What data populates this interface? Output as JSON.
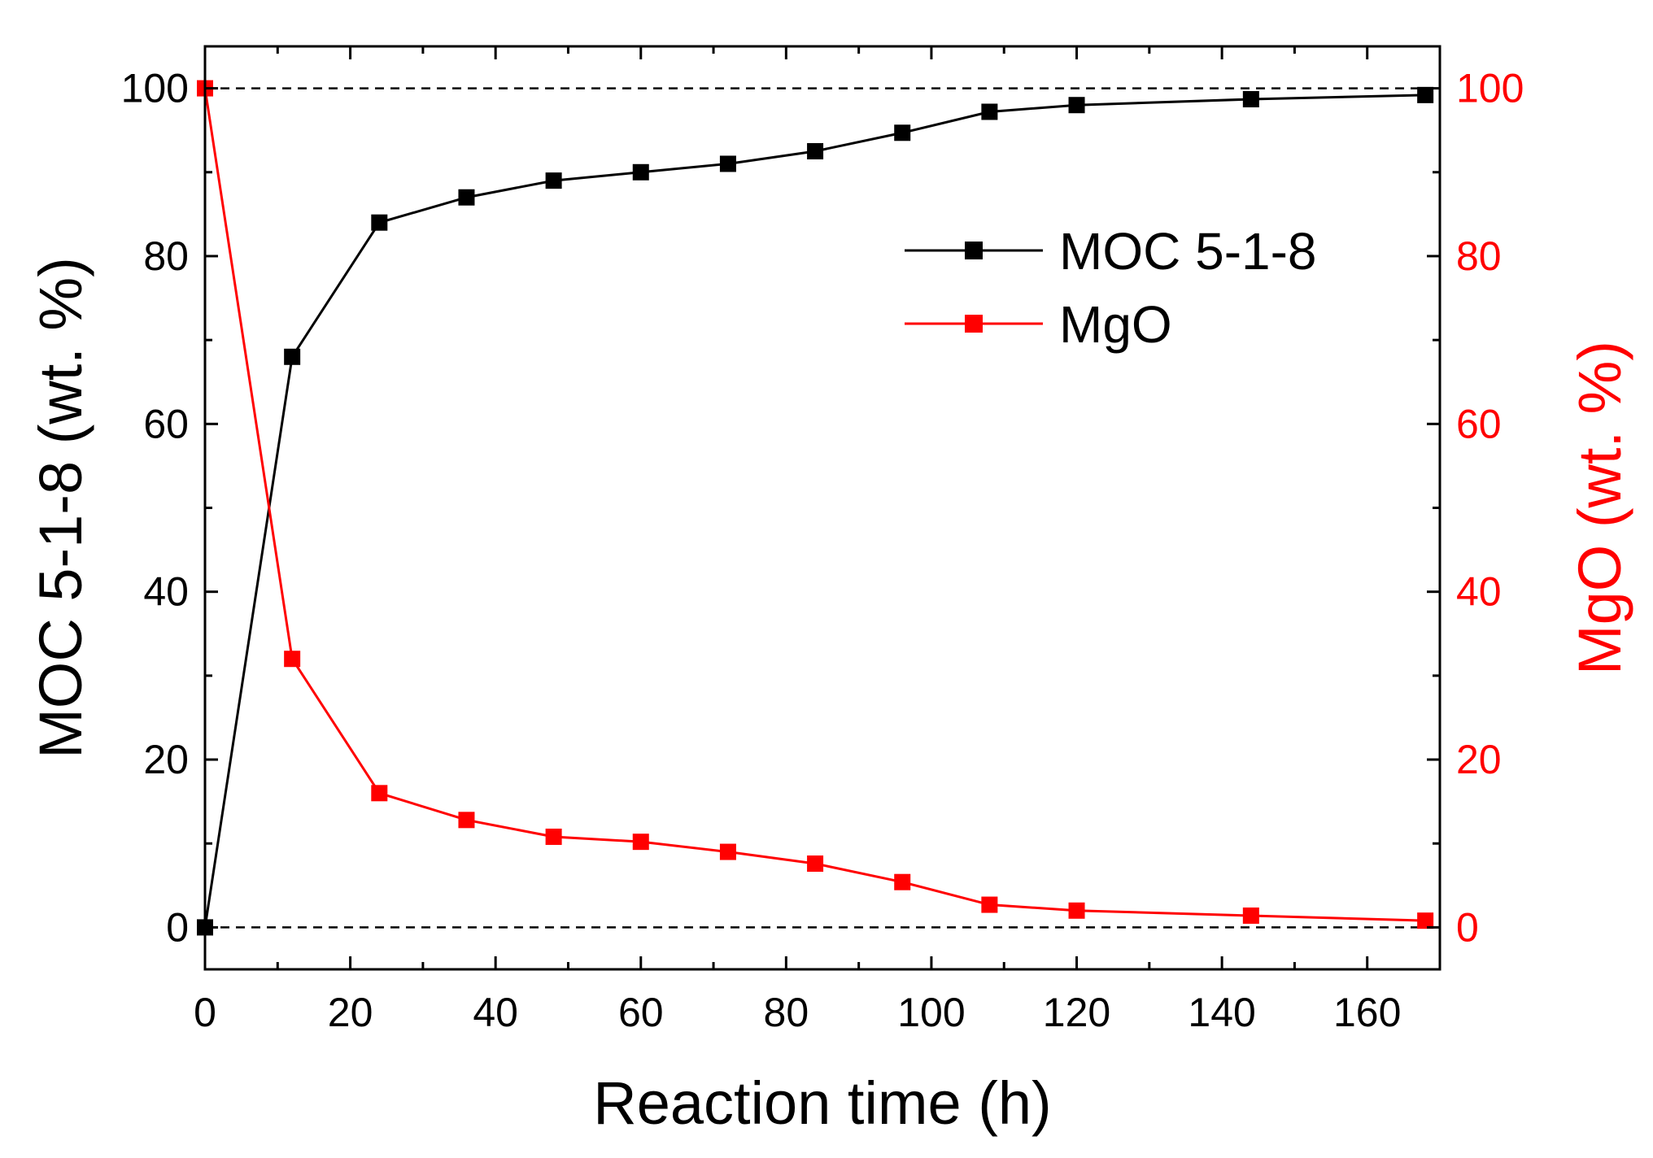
{
  "chart_data": {
    "type": "line",
    "title": "",
    "xlabel": "Reaction time (h)",
    "ylabel_left": "MOC 5-1-8 (wt. %)",
    "ylabel_right": "MgO (wt. %)",
    "xlim": [
      0,
      170
    ],
    "ylim_left": [
      -5,
      105
    ],
    "ylim_right": [
      -5,
      105
    ],
    "x_ticks": [
      0,
      20,
      40,
      60,
      80,
      100,
      120,
      140,
      160
    ],
    "y_ticks_left": [
      0,
      20,
      40,
      60,
      80,
      100
    ],
    "y_ticks_right": [
      0,
      20,
      40,
      60,
      80,
      100
    ],
    "reference_lines": [
      0,
      100
    ],
    "grid": false,
    "legend_position": "upper-right",
    "colors": {
      "left_axis": "#000000",
      "right_axis": "#ff0000"
    },
    "series": [
      {
        "name": "MOC 5-1-8",
        "axis": "left",
        "color": "#000000",
        "marker": "square",
        "x": [
          0,
          12,
          24,
          36,
          48,
          60,
          72,
          84,
          96,
          108,
          120,
          144,
          168
        ],
        "y": [
          0,
          68,
          84,
          87,
          89,
          90,
          91,
          92.5,
          94.7,
          97.2,
          98,
          98.7,
          99.2
        ]
      },
      {
        "name": "MgO",
        "axis": "right",
        "color": "#ff0000",
        "marker": "square",
        "x": [
          0,
          12,
          24,
          36,
          48,
          60,
          72,
          84,
          96,
          108,
          120,
          144,
          168
        ],
        "y": [
          100,
          32,
          16,
          12.8,
          10.8,
          10.2,
          9,
          7.6,
          5.4,
          2.7,
          2,
          1.4,
          0.8
        ]
      }
    ]
  }
}
